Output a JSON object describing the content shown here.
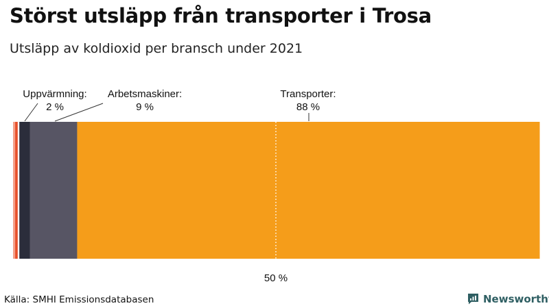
{
  "title": "Störst utsläpp från transporter i Trosa",
  "subtitle": "Utsläpp av koldioxid per bransch under 2021",
  "source": "Källa: SMHI Emissionsdatabasen",
  "brand": "Newsworthy",
  "colors": {
    "brand": "#2f5f63",
    "reference_line": "#ffffff"
  },
  "chart_data": {
    "type": "bar",
    "orientation": "horizontal-stacked-100",
    "xlim": [
      0,
      100
    ],
    "reference_line": {
      "value": 50,
      "label": "50 %"
    },
    "segments": [
      {
        "value": 0.4,
        "color": "#f3a08a"
      },
      {
        "value": 0.5,
        "color": "#e8502a"
      },
      {
        "value": 0.3,
        "color": "#ffffff"
      },
      {
        "value": 2,
        "color": "#2b2d3b",
        "name": "Uppvärmning:",
        "label": "2 %"
      },
      {
        "value": 9,
        "color": "#575564",
        "name": "Arbetsmaskiner:",
        "label": "9 %"
      },
      {
        "value": 88,
        "color": "#f59d1a",
        "name": "Transporter:",
        "label": "88 %"
      }
    ]
  }
}
